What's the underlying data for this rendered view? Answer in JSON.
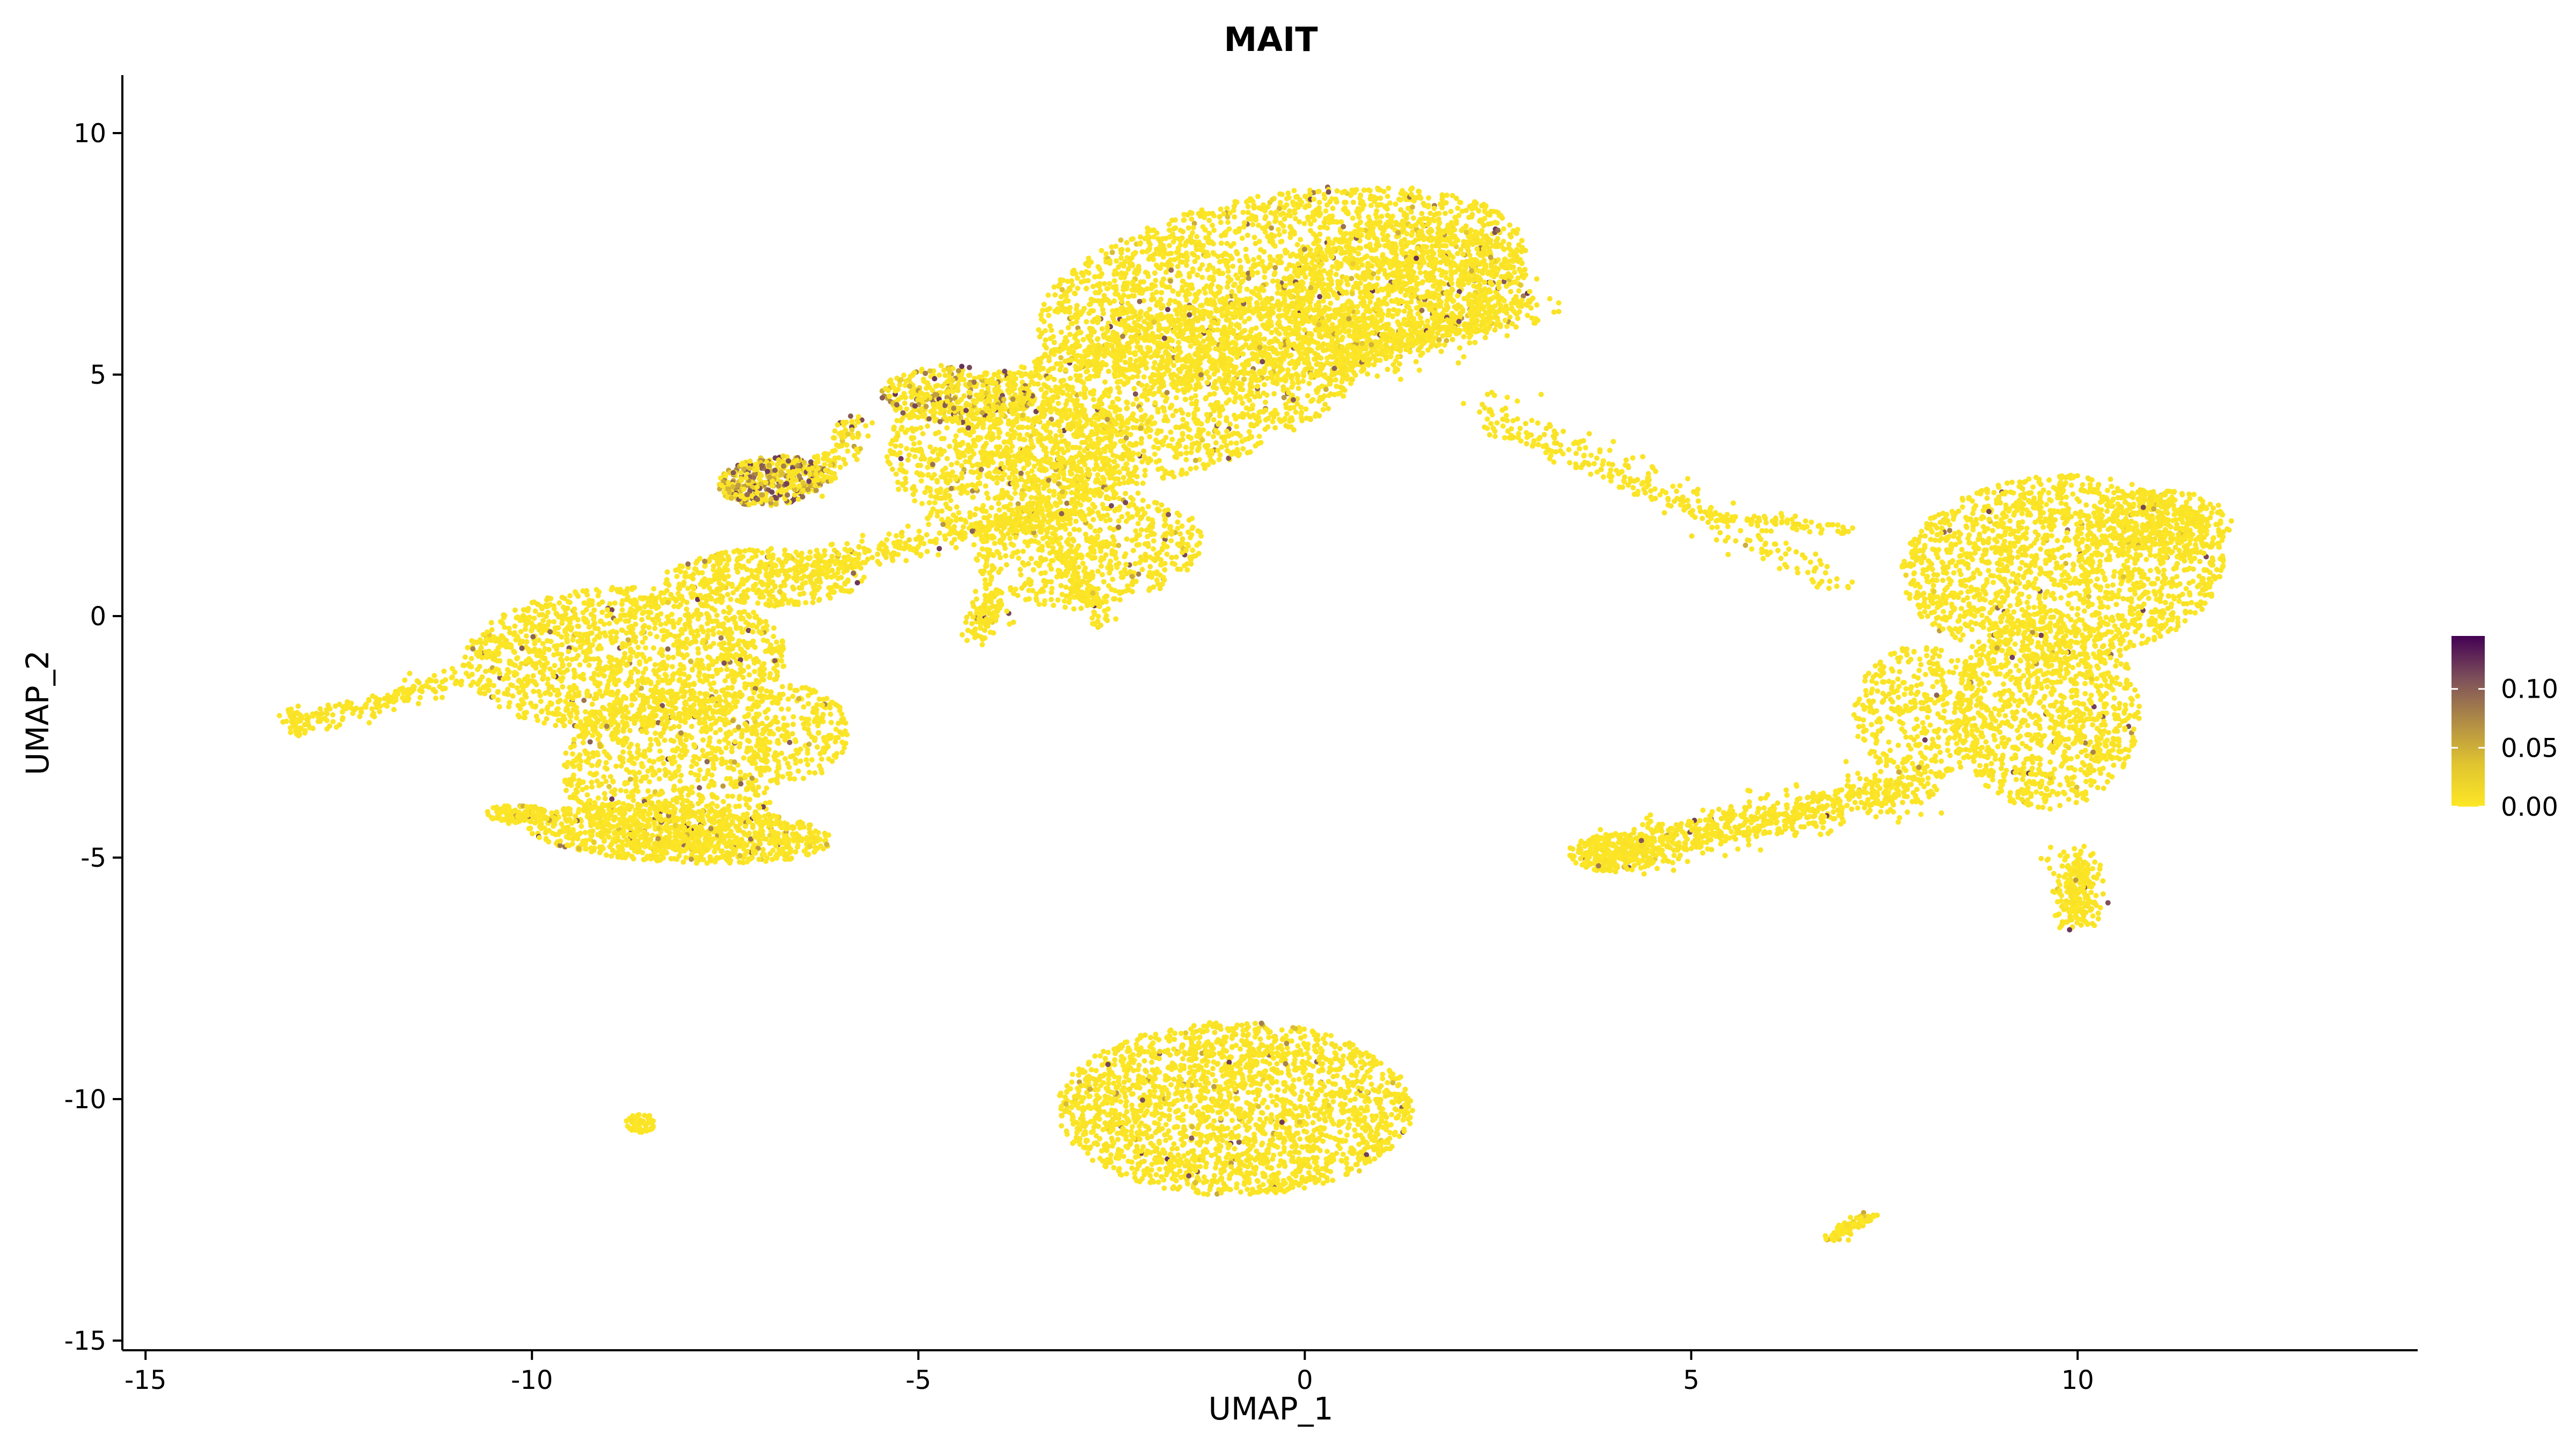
{
  "chart_data": {
    "type": "scatter",
    "title": "MAIT",
    "xlabel": "UMAP_1",
    "ylabel": "UMAP_2",
    "xlim": [
      -15.3,
      14.4
    ],
    "ylim": [
      -15.2,
      11.2
    ],
    "x_ticks": [
      -15,
      -10,
      -5,
      0,
      5,
      10
    ],
    "y_ticks": [
      -15,
      -10,
      -5,
      0,
      5,
      10
    ],
    "x_tick_labels": [
      "-15",
      "-10",
      "-5",
      "0",
      "5",
      "10"
    ],
    "y_tick_labels": [
      "-15",
      "-10",
      "-5",
      "0",
      "5",
      "10"
    ],
    "grid": false,
    "color_scale": {
      "palette": "viridis (reversed)",
      "low_color": "#FDE725",
      "high_color": "#440154",
      "range": [
        0.0,
        0.145
      ],
      "ticks": [
        0.0,
        0.05,
        0.1
      ],
      "tick_labels": [
        "0.00",
        "0.05",
        "0.10"
      ],
      "legend_position": "right"
    },
    "clusters": [
      {
        "region": "upper central cluster",
        "x_range": [
          -3.5,
          2.9
        ],
        "y_range": [
          -0.3,
          9.3
        ],
        "mean_value": 0.005
      },
      {
        "region": "upper-left diagonal band",
        "x_range": [
          -5.5,
          -1.0
        ],
        "y_range": [
          0.0,
          6.0
        ],
        "mean_value": 0.01
      },
      {
        "region": "high-expression left lobe",
        "x_range": [
          -7.5,
          -5.8
        ],
        "y_range": [
          2.0,
          3.6
        ],
        "mean_value": 0.06
      },
      {
        "region": "left cluster",
        "x_range": [
          -10.6,
          -5.8
        ],
        "y_range": [
          -5.3,
          1.5
        ],
        "mean_value": 0.005
      },
      {
        "region": "left thin arm",
        "x_range": [
          -13.2,
          -10.6
        ],
        "y_range": [
          -2.5,
          -1.2
        ],
        "mean_value": 0.0
      },
      {
        "region": "right cluster",
        "x_range": [
          3.5,
          12.0
        ],
        "y_range": [
          -6.6,
          3.0
        ],
        "mean_value": 0.003
      },
      {
        "region": "bottom oval cluster",
        "x_range": [
          -3.4,
          1.3
        ],
        "y_range": [
          -12.1,
          -8.0
        ],
        "mean_value": 0.004
      },
      {
        "region": "small cluster bottom-left",
        "x_range": [
          -8.8,
          -8.4
        ],
        "y_range": [
          -10.8,
          -10.2
        ],
        "mean_value": 0.0
      },
      {
        "region": "small cluster bottom-right",
        "x_range": [
          6.7,
          7.4
        ],
        "y_range": [
          -13.0,
          -12.3
        ],
        "mean_value": 0.01
      }
    ]
  }
}
